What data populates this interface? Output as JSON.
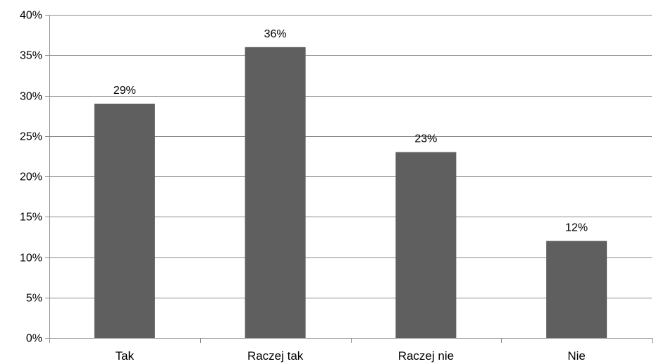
{
  "chart_data": {
    "type": "bar",
    "categories": [
      "Tak",
      "Raczej tak",
      "Raczej nie",
      "Nie"
    ],
    "values": [
      29,
      36,
      23,
      12
    ],
    "data_labels": [
      "29%",
      "36%",
      "23%",
      "12%"
    ],
    "ylim": [
      0,
      40
    ],
    "yticks": [
      0,
      5,
      10,
      15,
      20,
      25,
      30,
      35,
      40
    ],
    "ytick_labels": [
      "0%",
      "5%",
      "10%",
      "15%",
      "20%",
      "25%",
      "30%",
      "35%",
      "40%"
    ],
    "grid": true,
    "legend": "none",
    "colors": {
      "bar": "#5f5f5f",
      "grid": "#8c8c8c",
      "axis": "#8c8c8c"
    }
  }
}
